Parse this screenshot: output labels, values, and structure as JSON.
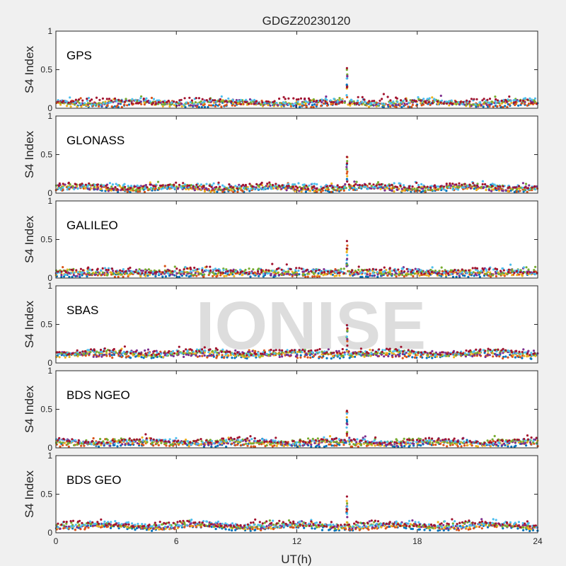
{
  "chart_data": {
    "type": "scatter",
    "title": "GDGZ20230120",
    "xlabel": "UT(h)",
    "ylabel": "S4 Index",
    "xlim": [
      0,
      24
    ],
    "ylim": [
      0,
      1
    ],
    "xticks": [
      "0",
      "6",
      "12",
      "18",
      "24"
    ],
    "yticks": [
      "0",
      "0.5",
      "1"
    ],
    "watermark": "IONISE",
    "watermark_panel": 3,
    "series_colors": [
      "#0072BD",
      "#D95319",
      "#EDB120",
      "#7E2F8E",
      "#77AC30",
      "#4DBEEE",
      "#A2142F"
    ],
    "panels": [
      {
        "name": "GPS",
        "baseline": 0.07,
        "spike_time": 14.5,
        "spike_max": 0.52
      },
      {
        "name": "GLONASS",
        "baseline": 0.07,
        "spike_time": 14.5,
        "spike_max": 0.47
      },
      {
        "name": "GALILEO",
        "baseline": 0.07,
        "spike_time": 14.5,
        "spike_max": 0.48
      },
      {
        "name": "SBAS",
        "baseline": 0.12,
        "spike_time": 14.5,
        "spike_max": 0.49
      },
      {
        "name": "BDS NGEO",
        "baseline": 0.07,
        "spike_time": 14.5,
        "spike_max": 0.48
      },
      {
        "name": "BDS GEO",
        "baseline": 0.09,
        "spike_time": 14.5,
        "spike_max": 0.47
      }
    ]
  }
}
